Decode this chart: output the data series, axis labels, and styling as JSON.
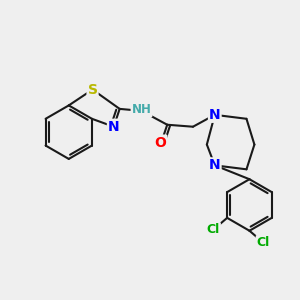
{
  "bg_color": "#efefef",
  "bond_color": "#1a1a1a",
  "bond_width": 1.5,
  "atom_colors": {
    "S": "#b8b800",
    "N": "#0000ff",
    "O": "#ff0000",
    "Cl": "#00aa00",
    "H": "#44aaaa",
    "C": "#1a1a1a"
  },
  "font_size": 9,
  "fig_size": [
    3.0,
    3.0
  ],
  "dpi": 100
}
